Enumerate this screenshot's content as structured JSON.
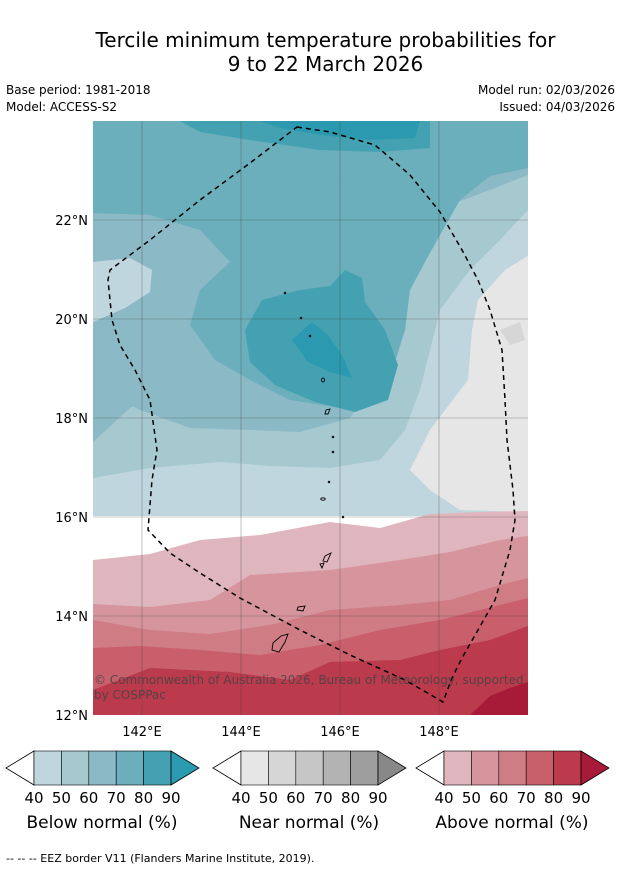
{
  "title": {
    "line1": "Tercile minimum temperature probabilities for",
    "line2": "9 to 22 March 2026"
  },
  "meta": {
    "base_period": "Base period: 1981-2018",
    "model": "Model: ACCESS-S2",
    "model_run": "Model run: 02/03/2026",
    "issued": "Issued: 04/03/2026"
  },
  "map": {
    "lat_ticks": [
      "22°N",
      "20°N",
      "18°N",
      "16°N",
      "14°N",
      "12°N"
    ],
    "lon_ticks": [
      "142°E",
      "144°E",
      "146°E",
      "148°E"
    ],
    "copyright_line1": "© Commonwealth of Australia 2026, Bureau of Meteorology, supported",
    "copyright_line2": "by COSPPac",
    "colors": {
      "below": [
        "#c0d6de",
        "#a6c9d0",
        "#8bbac6",
        "#6aafbb",
        "#44a1b1",
        "#2b9ab0"
      ],
      "near": [
        "#e6e6e6",
        "#d6d6d6",
        "#c6c6c6",
        "#b3b3b3",
        "#9e9e9e",
        "#888888"
      ],
      "above": [
        "#e0b6be",
        "#d6959d",
        "#cf7c85",
        "#c85f6b",
        "#bb3a4c",
        "#a81b38"
      ]
    }
  },
  "colorbars": [
    {
      "key": "below",
      "label": "Below normal (%)",
      "ticks": [
        "40",
        "50",
        "60",
        "70",
        "80",
        "90"
      ]
    },
    {
      "key": "near",
      "label": "Near normal (%)",
      "ticks": [
        "40",
        "50",
        "60",
        "70",
        "80",
        "90"
      ]
    },
    {
      "key": "above",
      "label": "Above normal (%)",
      "ticks": [
        "40",
        "50",
        "60",
        "70",
        "80",
        "90"
      ]
    }
  ],
  "footnote": "--  --  -- EEZ border V11 (Flanders Marine Institute, 2019)."
}
